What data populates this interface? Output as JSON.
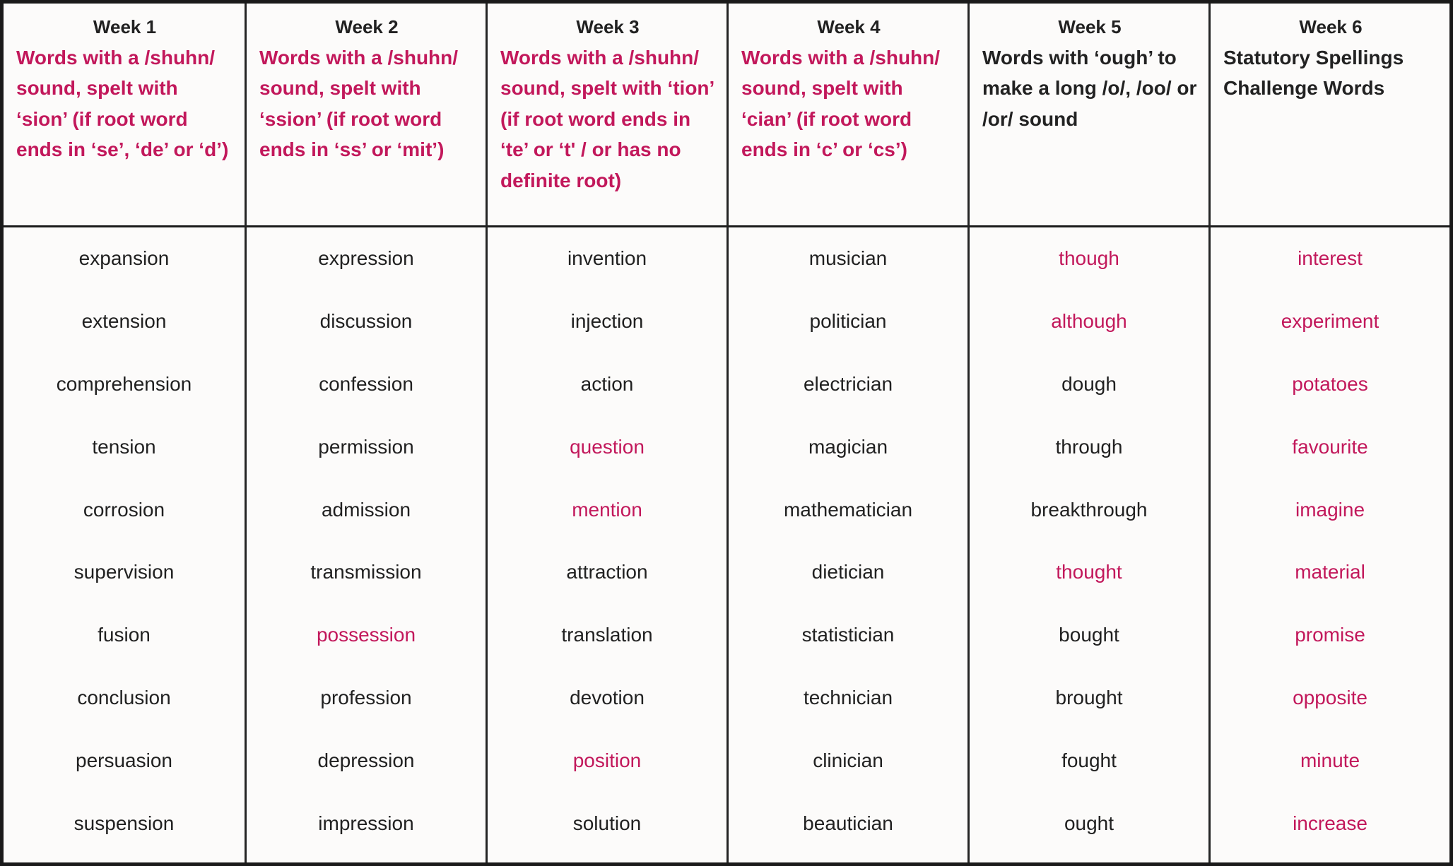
{
  "colors": {
    "pink": "#c2185b",
    "ink": "#212121"
  },
  "table": {
    "columns": [
      {
        "week": "Week 1",
        "accent": "pink",
        "description": "Words with a /shuhn/ sound, spelt with ‘sion’ (if root word ends in ‘se’, ‘de’ or ‘d’)",
        "words": [
          {
            "text": "expansion",
            "highlight": false
          },
          {
            "text": "extension",
            "highlight": false
          },
          {
            "text": "comprehension",
            "highlight": false
          },
          {
            "text": "tension",
            "highlight": false
          },
          {
            "text": "corrosion",
            "highlight": false
          },
          {
            "text": "supervision",
            "highlight": false
          },
          {
            "text": "fusion",
            "highlight": false
          },
          {
            "text": "conclusion",
            "highlight": false
          },
          {
            "text": "persuasion",
            "highlight": false
          },
          {
            "text": "suspension",
            "highlight": false
          }
        ]
      },
      {
        "week": "Week 2",
        "accent": "pink",
        "description": "Words with a /shuhn/ sound, spelt with ‘ssion’ (if root word ends in ‘ss’ or ‘mit’)",
        "words": [
          {
            "text": "expression",
            "highlight": false
          },
          {
            "text": "discussion",
            "highlight": false
          },
          {
            "text": "confession",
            "highlight": false
          },
          {
            "text": "permission",
            "highlight": false
          },
          {
            "text": "admission",
            "highlight": false
          },
          {
            "text": "transmission",
            "highlight": false
          },
          {
            "text": "possession",
            "highlight": true
          },
          {
            "text": "profession",
            "highlight": false
          },
          {
            "text": "depression",
            "highlight": false
          },
          {
            "text": "impression",
            "highlight": false
          }
        ]
      },
      {
        "week": "Week 3",
        "accent": "pink",
        "description": "Words with a /shuhn/ sound, spelt with ‘tion’ (if root word ends in ‘te’ or ‘t' / or has no definite root)",
        "words": [
          {
            "text": "invention",
            "highlight": false
          },
          {
            "text": "injection",
            "highlight": false
          },
          {
            "text": "action",
            "highlight": false
          },
          {
            "text": "question",
            "highlight": true
          },
          {
            "text": "mention",
            "highlight": true
          },
          {
            "text": "attraction",
            "highlight": false
          },
          {
            "text": "translation",
            "highlight": false
          },
          {
            "text": "devotion",
            "highlight": false
          },
          {
            "text": "position",
            "highlight": true
          },
          {
            "text": "solution",
            "highlight": false
          }
        ]
      },
      {
        "week": "Week 4",
        "accent": "pink",
        "description": "Words with a /shuhn/ sound, spelt with ‘cian’ (if root word ends in ‘c’ or ‘cs’)",
        "words": [
          {
            "text": "musician",
            "highlight": false
          },
          {
            "text": "politician",
            "highlight": false
          },
          {
            "text": "electrician",
            "highlight": false
          },
          {
            "text": "magician",
            "highlight": false
          },
          {
            "text": "mathematician",
            "highlight": false
          },
          {
            "text": "dietician",
            "highlight": false
          },
          {
            "text": "statistician",
            "highlight": false
          },
          {
            "text": "technician",
            "highlight": false
          },
          {
            "text": "clinician",
            "highlight": false
          },
          {
            "text": "beautician",
            "highlight": false
          }
        ]
      },
      {
        "week": "Week 5",
        "accent": "dark",
        "description": "Words with ‘ough’ to make a long /o/, /oo/ or /or/ sound",
        "words": [
          {
            "text": "though",
            "highlight": true
          },
          {
            "text": "although",
            "highlight": true
          },
          {
            "text": "dough",
            "highlight": false
          },
          {
            "text": "through",
            "highlight": false
          },
          {
            "text": "breakthrough",
            "highlight": false
          },
          {
            "text": "thought",
            "highlight": true
          },
          {
            "text": "bought",
            "highlight": false
          },
          {
            "text": "brought",
            "highlight": false
          },
          {
            "text": "fought",
            "highlight": false
          },
          {
            "text": "ought",
            "highlight": false
          }
        ]
      },
      {
        "week": "Week 6",
        "accent": "dark",
        "description": "Statutory Spellings Challenge Words",
        "words": [
          {
            "text": "interest",
            "highlight": true
          },
          {
            "text": "experiment",
            "highlight": true
          },
          {
            "text": "potatoes",
            "highlight": true
          },
          {
            "text": "favourite",
            "highlight": true
          },
          {
            "text": "imagine",
            "highlight": true
          },
          {
            "text": "material",
            "highlight": true
          },
          {
            "text": "promise",
            "highlight": true
          },
          {
            "text": "opposite",
            "highlight": true
          },
          {
            "text": "minute",
            "highlight": true
          },
          {
            "text": "increase",
            "highlight": true
          }
        ]
      }
    ]
  }
}
